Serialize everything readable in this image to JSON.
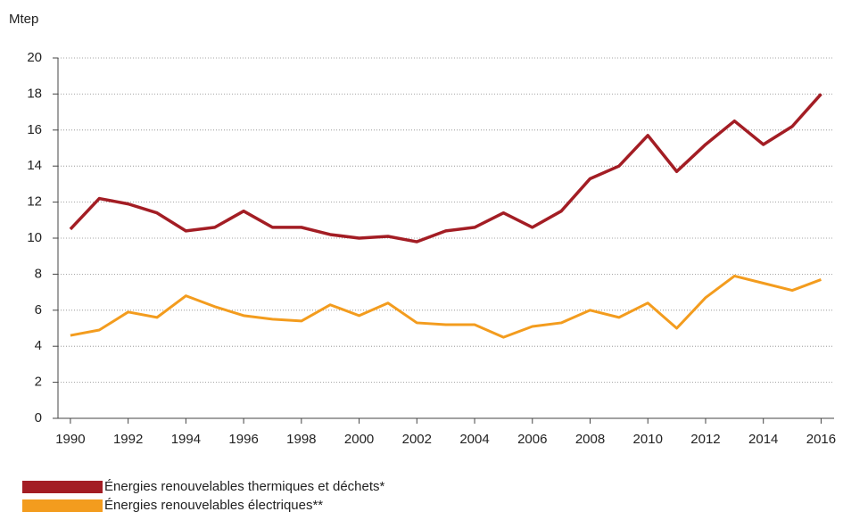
{
  "chart_data": {
    "type": "line",
    "y_label": "Mtep",
    "x": [
      1990,
      1991,
      1992,
      1993,
      1994,
      1995,
      1996,
      1997,
      1998,
      1999,
      2000,
      2001,
      2002,
      2003,
      2004,
      2005,
      2006,
      2007,
      2008,
      2009,
      2010,
      2011,
      2012,
      2013,
      2014,
      2015,
      2016
    ],
    "series": [
      {
        "name": "Énergies renouvelables thermiques et déchets*",
        "color": "#a31d24",
        "values": [
          10.5,
          12.2,
          11.9,
          11.4,
          10.4,
          10.6,
          11.5,
          10.6,
          10.6,
          10.2,
          10.0,
          10.1,
          9.8,
          10.4,
          10.6,
          11.4,
          10.6,
          11.5,
          13.3,
          14.0,
          15.7,
          13.7,
          15.2,
          16.5,
          15.2,
          16.2,
          18.0
        ]
      },
      {
        "name": "Énergies renouvelables électriques**",
        "color": "#f39c1e",
        "values": [
          4.6,
          4.9,
          5.9,
          5.6,
          6.8,
          6.2,
          5.7,
          5.5,
          5.4,
          6.3,
          5.7,
          6.4,
          5.3,
          5.2,
          5.2,
          4.5,
          5.1,
          5.3,
          6.0,
          5.6,
          6.4,
          5.0,
          6.7,
          7.9,
          7.5,
          7.1,
          7.7
        ]
      }
    ],
    "xlim": [
      1989.57,
      2016.45
    ],
    "xticks": [
      1990,
      1992,
      1994,
      1996,
      1998,
      2000,
      2002,
      2004,
      2006,
      2008,
      2010,
      2012,
      2014,
      2016
    ],
    "ylim": [
      0,
      20
    ],
    "yticks": [
      0,
      2,
      4,
      6,
      8,
      10,
      12,
      14,
      16,
      18,
      20
    ],
    "grid": true
  }
}
